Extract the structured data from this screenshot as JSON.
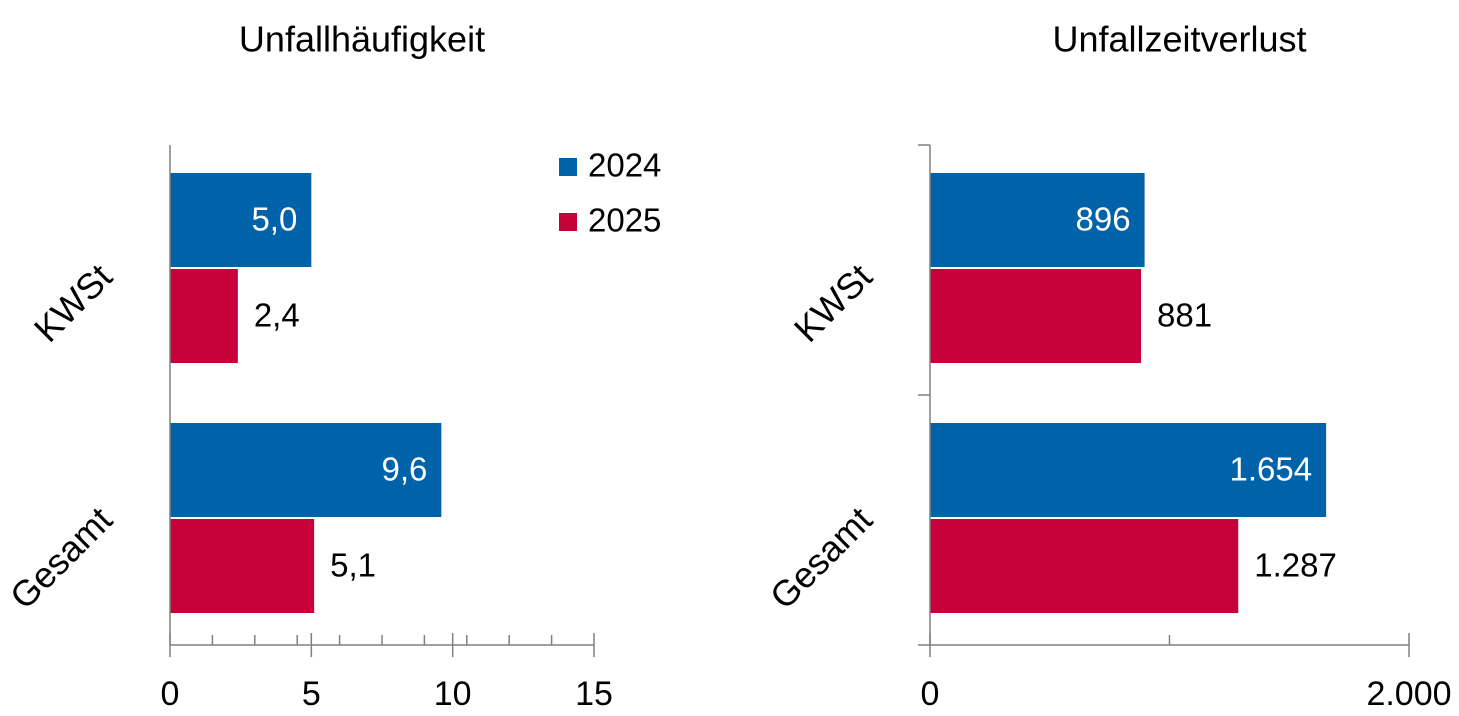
{
  "chart_data": [
    {
      "type": "bar",
      "title": "Unfallhäufigkeit",
      "orientation": "horizontal",
      "categories": [
        "KWSt",
        "Gesamt"
      ],
      "series": [
        {
          "name": "2024",
          "color": "#0062a8",
          "values": [
            5.0,
            9.6
          ],
          "value_labels": [
            "5,0",
            "9,6"
          ]
        },
        {
          "name": "2025",
          "color": "#c8003a",
          "values": [
            2.4,
            5.1
          ],
          "value_labels": [
            "2,4",
            "5,1"
          ]
        }
      ],
      "xlim": [
        0,
        15
      ],
      "xticks": [
        0,
        5,
        10,
        15
      ],
      "minor_xticks": [
        1.5,
        3,
        4.5,
        6,
        7.5,
        9,
        10.5,
        12,
        13.5
      ],
      "legend": "top-right"
    },
    {
      "type": "bar",
      "title": "Unfallzeitverlust",
      "orientation": "horizontal",
      "categories": [
        "KWSt",
        "Gesamt"
      ],
      "series": [
        {
          "color": "#0062a8",
          "values": [
            896,
            1654
          ],
          "value_labels": [
            "896",
            "1.654"
          ]
        },
        {
          "color": "#c8003a",
          "values": [
            881,
            1287
          ],
          "value_labels": [
            "881",
            "1.287"
          ]
        }
      ],
      "xlim": [
        0,
        2000
      ],
      "xticks": [
        0,
        {
          "value": 2000,
          "label": "2.000"
        }
      ],
      "minor_xticks": [
        1000
      ]
    }
  ]
}
